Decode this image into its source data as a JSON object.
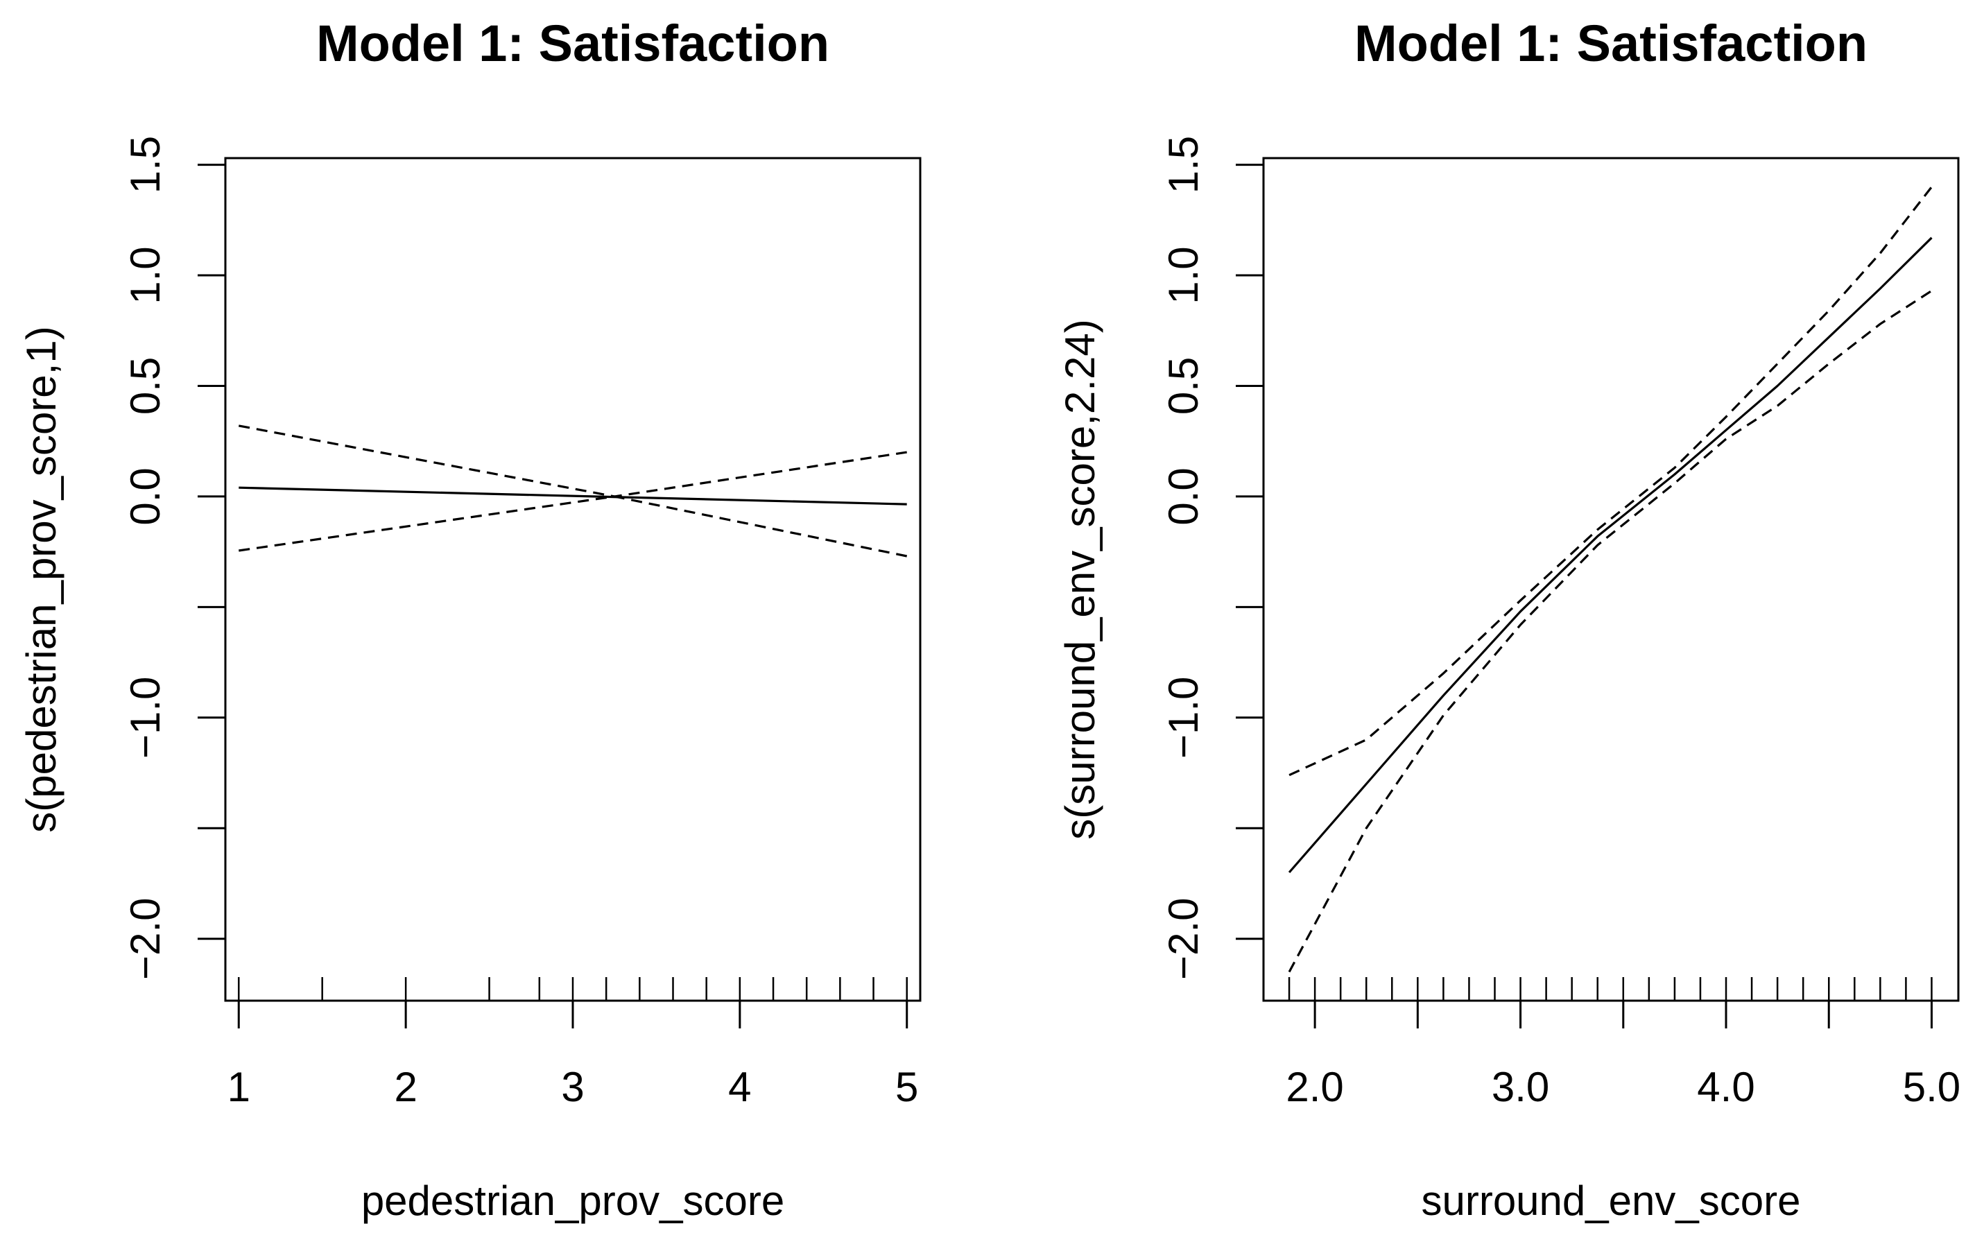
{
  "chart_data": [
    {
      "type": "line",
      "title": "Model 1: Satisfaction",
      "xlabel": "pedestrian_prov_score",
      "ylabel": "s(pedestrian_prov_score,1)",
      "xlim": [
        0.92,
        5.08
      ],
      "ylim": [
        -2.28,
        1.53
      ],
      "xticks": [
        1,
        2,
        3,
        4,
        5
      ],
      "xtick_labels": [
        "1",
        "2",
        "3",
        "4",
        "5"
      ],
      "yticks": [
        -2.0,
        -1.5,
        -1.0,
        -0.5,
        0.0,
        0.5,
        1.0,
        1.5
      ],
      "ytick_labels": [
        "−2.0",
        "",
        "−1.0",
        "",
        "0.0",
        "0.5",
        "1.0",
        "1.5"
      ],
      "rug": [
        1.0,
        1.5,
        2.0,
        2.5,
        2.8,
        3.0,
        3.2,
        3.4,
        3.6,
        3.8,
        4.0,
        4.2,
        4.4,
        4.6,
        4.8,
        5.0
      ],
      "series": [
        {
          "name": "fit",
          "style": "solid",
          "x": [
            1,
            5
          ],
          "y": [
            0.04,
            -0.035
          ]
        },
        {
          "name": "upper",
          "style": "dashed",
          "x": [
            1,
            3.25,
            5
          ],
          "y": [
            0.32,
            0.0,
            0.2
          ]
        },
        {
          "name": "lower",
          "style": "dashed",
          "x": [
            1,
            3.25,
            5
          ],
          "y": [
            -0.245,
            0.0,
            -0.27
          ]
        }
      ]
    },
    {
      "type": "line",
      "title": "Model 1: Satisfaction",
      "xlabel": "surround_env_score",
      "ylabel": "s(surround_env_score,2.24)",
      "xlim": [
        1.75,
        5.13
      ],
      "ylim": [
        -2.28,
        1.53
      ],
      "xticks": [
        2.0,
        2.5,
        3.0,
        3.5,
        4.0,
        4.5,
        5.0
      ],
      "xtick_labels": [
        "2.0",
        "",
        "3.0",
        "",
        "4.0",
        "",
        "5.0"
      ],
      "yticks": [
        -2.0,
        -1.5,
        -1.0,
        -0.5,
        0.0,
        0.5,
        1.0,
        1.5
      ],
      "ytick_labels": [
        "−2.0",
        "",
        "−1.0",
        "",
        "0.0",
        "0.5",
        "1.0",
        "1.5"
      ],
      "rug": [
        1.875,
        2.0,
        2.125,
        2.25,
        2.375,
        2.5,
        2.625,
        2.75,
        2.875,
        3.0,
        3.125,
        3.25,
        3.375,
        3.5,
        3.625,
        3.75,
        3.875,
        4.0,
        4.125,
        4.25,
        4.375,
        4.5,
        4.625,
        4.75,
        4.875,
        5.0
      ],
      "series": [
        {
          "name": "fit",
          "style": "solid",
          "x": [
            1.875,
            2.25,
            2.625,
            3.0,
            3.375,
            3.75,
            4.0,
            4.25,
            4.5,
            4.75,
            5.0
          ],
          "y": [
            -1.7,
            -1.3,
            -0.9,
            -0.52,
            -0.18,
            0.1,
            0.3,
            0.5,
            0.72,
            0.94,
            1.17
          ]
        },
        {
          "name": "upper",
          "style": "dashed",
          "x": [
            1.875,
            2.25,
            2.625,
            3.0,
            3.375,
            3.75,
            4.0,
            4.25,
            4.5,
            4.75,
            5.0
          ],
          "y": [
            -1.26,
            -1.1,
            -0.8,
            -0.47,
            -0.15,
            0.13,
            0.36,
            0.6,
            0.84,
            1.1,
            1.4
          ]
        },
        {
          "name": "lower",
          "style": "dashed",
          "x": [
            1.875,
            2.25,
            2.625,
            3.0,
            3.375,
            3.75,
            4.0,
            4.25,
            4.5,
            4.75,
            5.0
          ],
          "y": [
            -2.15,
            -1.5,
            -0.99,
            -0.58,
            -0.22,
            0.06,
            0.26,
            0.41,
            0.6,
            0.78,
            0.93
          ]
        }
      ]
    }
  ]
}
